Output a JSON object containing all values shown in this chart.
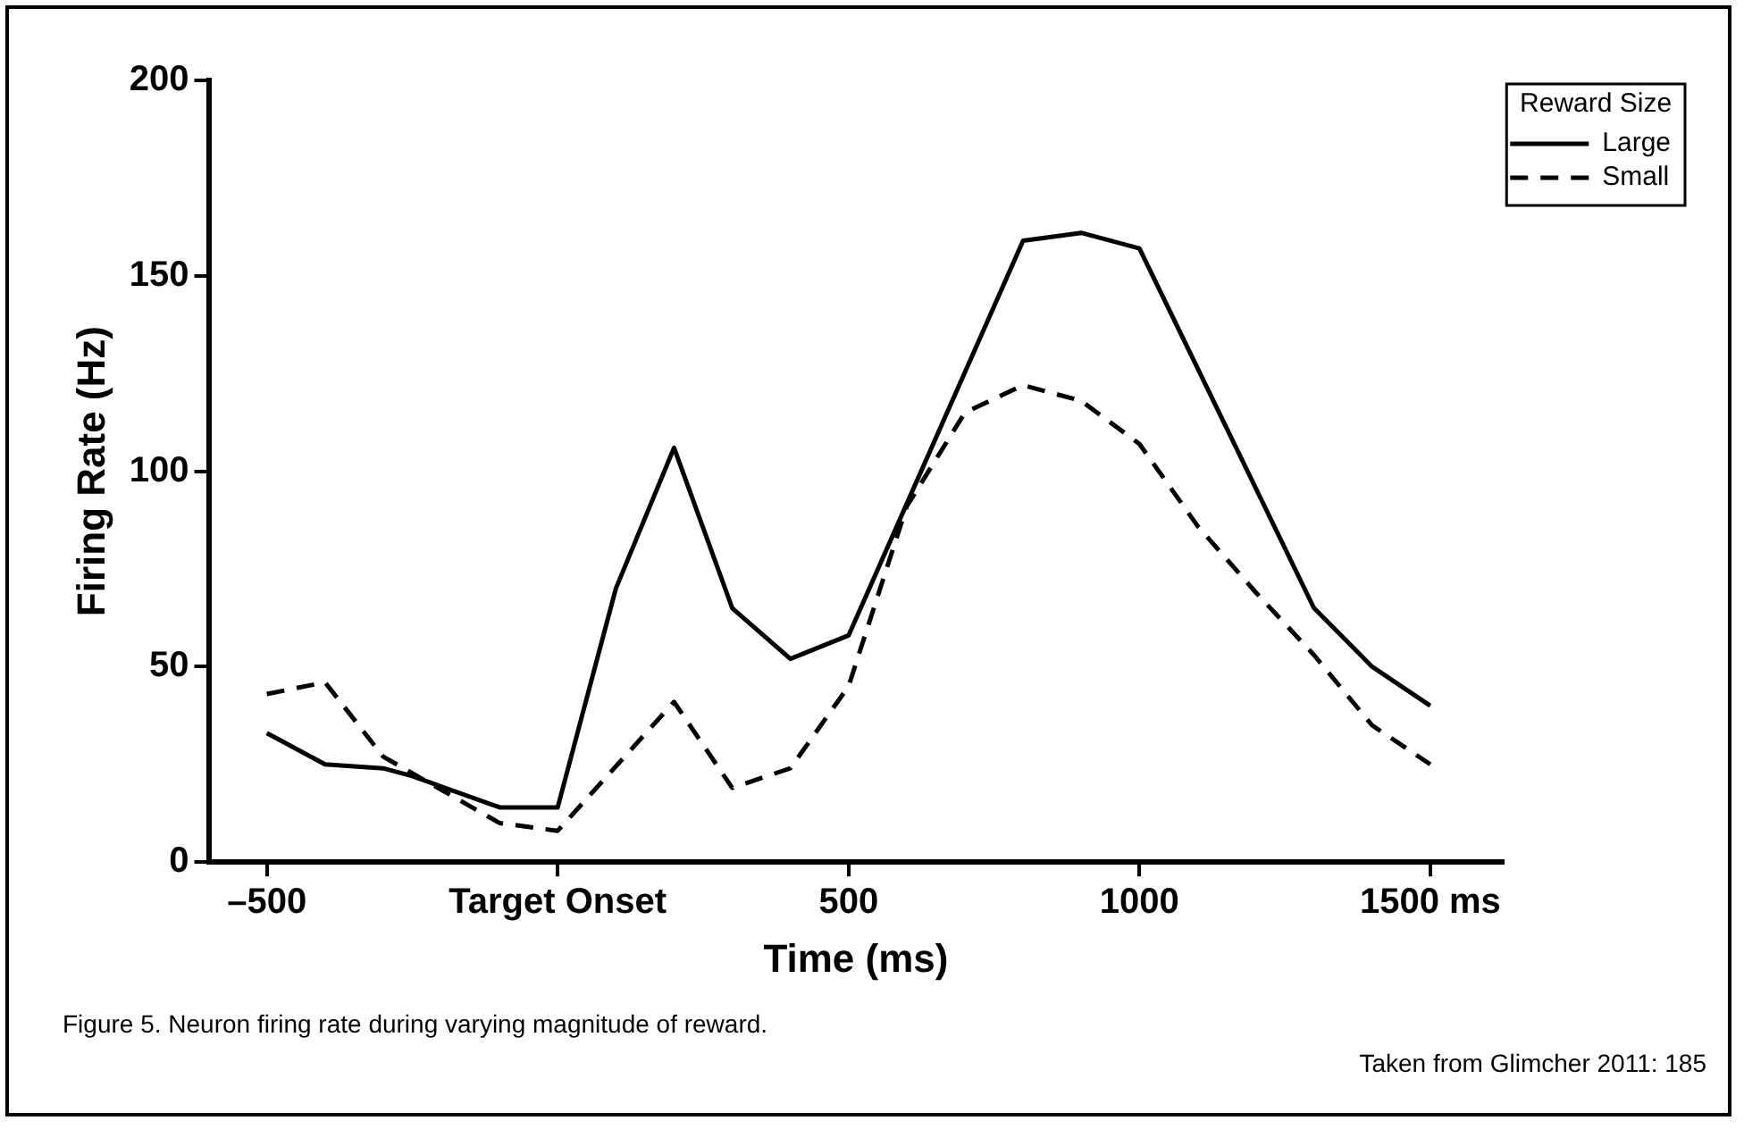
{
  "chart_data": {
    "type": "line",
    "xlabel": "Time (ms)",
    "ylabel": "Firing Rate (Hz)",
    "legend_title": "Reward Size",
    "xlim": [
      -600,
      1625
    ],
    "ylim": [
      0,
      200
    ],
    "xticks": [
      {
        "value": -500,
        "label": "–500"
      },
      {
        "value": 0,
        "label": "Target Onset"
      },
      500,
      1000,
      {
        "value": 1500,
        "label": "1500 ms"
      }
    ],
    "yticks": [
      0,
      50,
      100,
      150,
      200
    ],
    "grid": false,
    "legend": "right",
    "marker": "none",
    "series": [
      {
        "name": "Large",
        "color": "#000000",
        "line_style": "solid",
        "x": [
          -500,
          -400,
          -300,
          -250,
          -100,
          0,
          100,
          200,
          300,
          400,
          500,
          800,
          900,
          1000,
          1300,
          1400,
          1500
        ],
        "values": [
          33,
          25,
          24,
          22,
          14,
          14,
          70,
          106,
          65,
          52,
          58,
          159,
          161,
          157,
          65,
          50,
          40
        ]
      },
      {
        "name": "Small",
        "color": "#000000",
        "line_style": "dashed",
        "x": [
          -500,
          -400,
          -300,
          -100,
          0,
          200,
          300,
          400,
          500,
          600,
          700,
          800,
          900,
          1000,
          1100,
          1200,
          1300,
          1400,
          1500
        ],
        "values": [
          43,
          46,
          27,
          10,
          8,
          41,
          19,
          24,
          45,
          91,
          115,
          122,
          118,
          107,
          86,
          69,
          53,
          35,
          25
        ]
      }
    ],
    "annotations": [
      "Figure 5. Neuron firing rate during varying magnitude of reward.",
      "Taken from Glimcher 2011: 185"
    ]
  }
}
